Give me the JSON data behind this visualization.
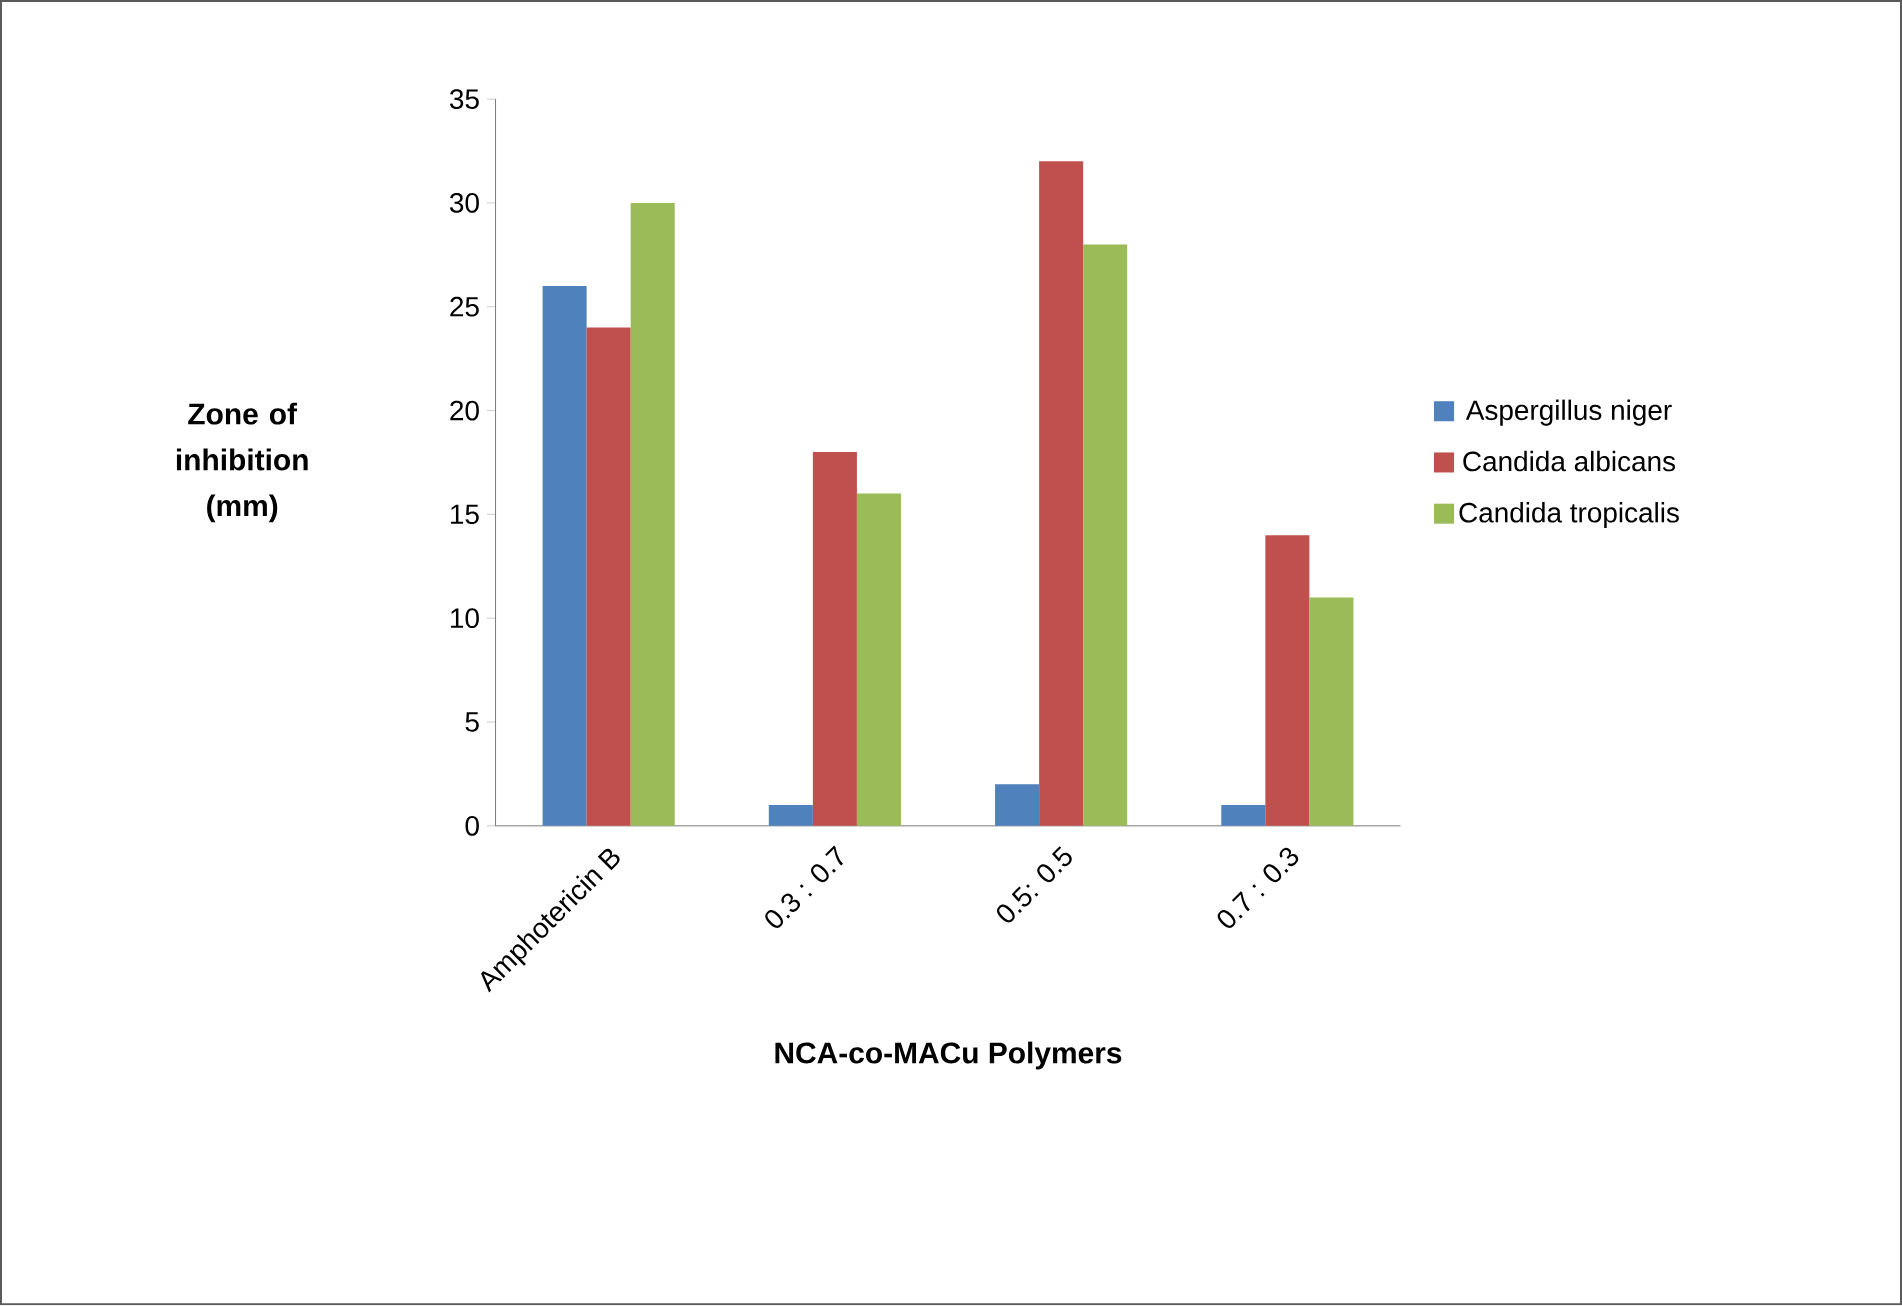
{
  "chart_data": {
    "type": "bar",
    "xlabel": "NCA-co-MACu Polymers",
    "ylabel": "Zone of inhibition (mm)",
    "categories": [
      "Amphotericin B",
      "0.3 : 0.7",
      "0.5: 0.5",
      "0.7 : 0.3"
    ],
    "series": [
      {
        "name": "Aspergillus niger",
        "color": "#4f81bd",
        "values": [
          26,
          1,
          2,
          1
        ]
      },
      {
        "name": "Candida albicans",
        "color": "#c0504d",
        "values": [
          24,
          18,
          32,
          14
        ]
      },
      {
        "name": "Candida tropicalis",
        "color": "#9bbb59",
        "values": [
          30,
          16,
          28,
          11
        ]
      }
    ],
    "ylim": [
      0,
      35
    ],
    "yticks": [
      0,
      5,
      10,
      15,
      20,
      25,
      30,
      35
    ],
    "legend": "right"
  }
}
